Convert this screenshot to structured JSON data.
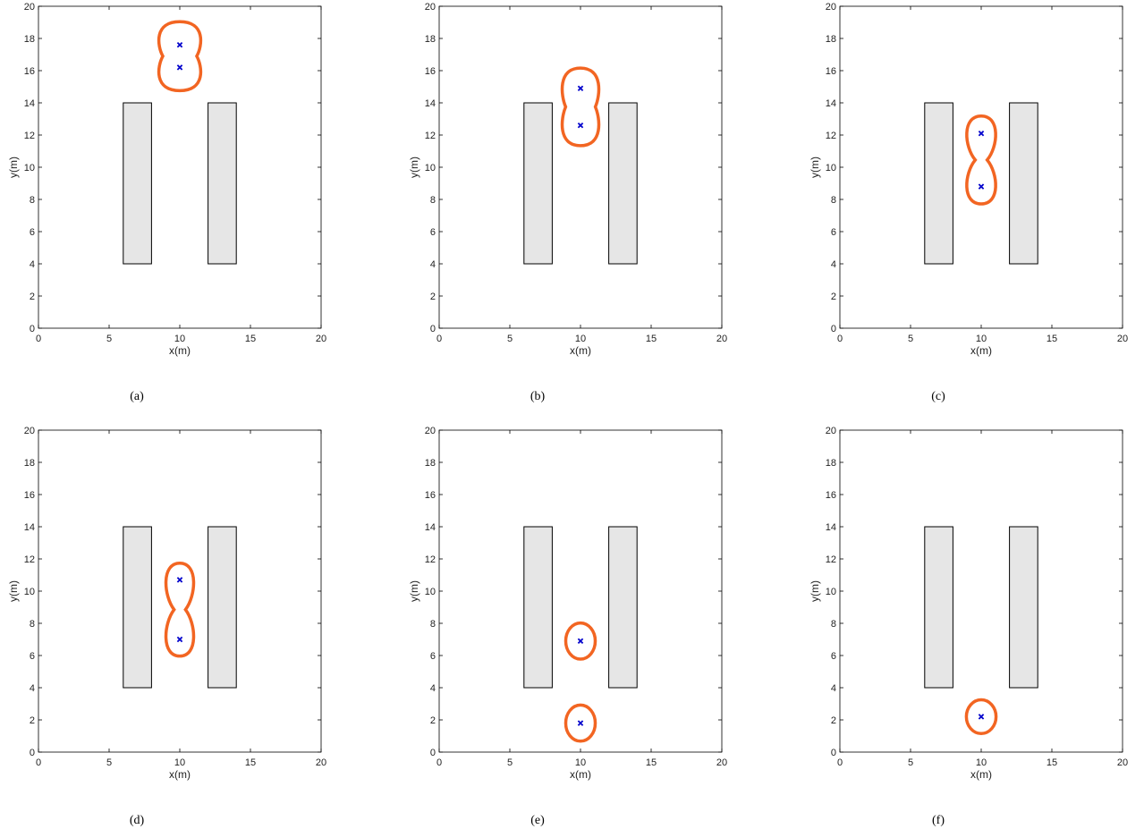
{
  "colors": {
    "contour": "#f26522",
    "agent_marker": "#0000cc",
    "obstacle_fill": "#e6e6e6",
    "obstacle_edge": "#000000",
    "axes": "#000000"
  },
  "chart_data": [
    {
      "type": "scatter",
      "caption": "(a)",
      "xlabel": "x(m)",
      "ylabel": "y(m)",
      "xlim": [
        0,
        20
      ],
      "ylim": [
        0,
        20
      ],
      "xticks": [
        0,
        5,
        10,
        15,
        20
      ],
      "yticks": [
        0,
        2,
        4,
        6,
        8,
        10,
        12,
        14,
        16,
        18,
        20
      ],
      "obstacles": [
        {
          "x": [
            6,
            8
          ],
          "y": [
            4,
            14
          ]
        },
        {
          "x": [
            12,
            14
          ],
          "y": [
            4,
            14
          ]
        }
      ],
      "agents": [
        {
          "x": 10,
          "y": 17.6
        },
        {
          "x": 10,
          "y": 16.2
        }
      ],
      "contour_radius": 1.6
    },
    {
      "type": "scatter",
      "caption": "(b)",
      "xlabel": "x(m)",
      "ylabel": "y(m)",
      "xlim": [
        0,
        20
      ],
      "ylim": [
        0,
        20
      ],
      "xticks": [
        0,
        5,
        10,
        15,
        20
      ],
      "yticks": [
        0,
        2,
        4,
        6,
        8,
        10,
        12,
        14,
        16,
        18,
        20
      ],
      "obstacles": [
        {
          "x": [
            6,
            8
          ],
          "y": [
            4,
            14
          ]
        },
        {
          "x": [
            12,
            14
          ],
          "y": [
            4,
            14
          ]
        }
      ],
      "agents": [
        {
          "x": 10,
          "y": 14.9
        },
        {
          "x": 10,
          "y": 12.6
        }
      ],
      "contour_radius": 1.4
    },
    {
      "type": "scatter",
      "caption": "(c)",
      "xlabel": "x(m)",
      "ylabel": "y(m)",
      "xlim": [
        0,
        20
      ],
      "ylim": [
        0,
        20
      ],
      "xticks": [
        0,
        5,
        10,
        15,
        20
      ],
      "yticks": [
        0,
        2,
        4,
        6,
        8,
        10,
        12,
        14,
        16,
        18,
        20
      ],
      "obstacles": [
        {
          "x": [
            6,
            8
          ],
          "y": [
            4,
            14
          ]
        },
        {
          "x": [
            12,
            14
          ],
          "y": [
            4,
            14
          ]
        }
      ],
      "agents": [
        {
          "x": 10,
          "y": 12.1
        },
        {
          "x": 10,
          "y": 8.8
        }
      ],
      "contour_radius": 1.2
    },
    {
      "type": "scatter",
      "caption": "(d)",
      "xlabel": "x(m)",
      "ylabel": "y(m)",
      "xlim": [
        0,
        20
      ],
      "ylim": [
        0,
        20
      ],
      "xticks": [
        0,
        5,
        10,
        15,
        20
      ],
      "yticks": [
        0,
        2,
        4,
        6,
        8,
        10,
        12,
        14,
        16,
        18,
        20
      ],
      "obstacles": [
        {
          "x": [
            6,
            8
          ],
          "y": [
            4,
            14
          ]
        },
        {
          "x": [
            12,
            14
          ],
          "y": [
            4,
            14
          ]
        }
      ],
      "agents": [
        {
          "x": 10,
          "y": 10.7
        },
        {
          "x": 10,
          "y": 7.0
        }
      ],
      "contour_radius": 1.15
    },
    {
      "type": "scatter",
      "caption": "(e)",
      "xlabel": "x(m)",
      "ylabel": "y(m)",
      "xlim": [
        0,
        20
      ],
      "ylim": [
        0,
        20
      ],
      "xticks": [
        0,
        5,
        10,
        15,
        20
      ],
      "yticks": [
        0,
        2,
        4,
        6,
        8,
        10,
        12,
        14,
        16,
        18,
        20
      ],
      "obstacles": [
        {
          "x": [
            6,
            8
          ],
          "y": [
            4,
            14
          ]
        },
        {
          "x": [
            12,
            14
          ],
          "y": [
            4,
            14
          ]
        }
      ],
      "agents": [
        {
          "x": 10,
          "y": 6.9
        },
        {
          "x": 10,
          "y": 1.8
        }
      ],
      "contour_radius": 1.1
    },
    {
      "type": "scatter",
      "caption": "(f)",
      "xlabel": "x(m)",
      "ylabel": "y(m)",
      "xlim": [
        0,
        20
      ],
      "ylim": [
        0,
        20
      ],
      "xticks": [
        0,
        5,
        10,
        15,
        20
      ],
      "yticks": [
        0,
        2,
        4,
        6,
        8,
        10,
        12,
        14,
        16,
        18,
        20
      ],
      "obstacles": [
        {
          "x": [
            6,
            8
          ],
          "y": [
            4,
            14
          ]
        },
        {
          "x": [
            12,
            14
          ],
          "y": [
            4,
            14
          ]
        }
      ],
      "agents": [
        {
          "x": 10,
          "y": 2.2
        }
      ],
      "contour_radius": 1.05
    }
  ]
}
